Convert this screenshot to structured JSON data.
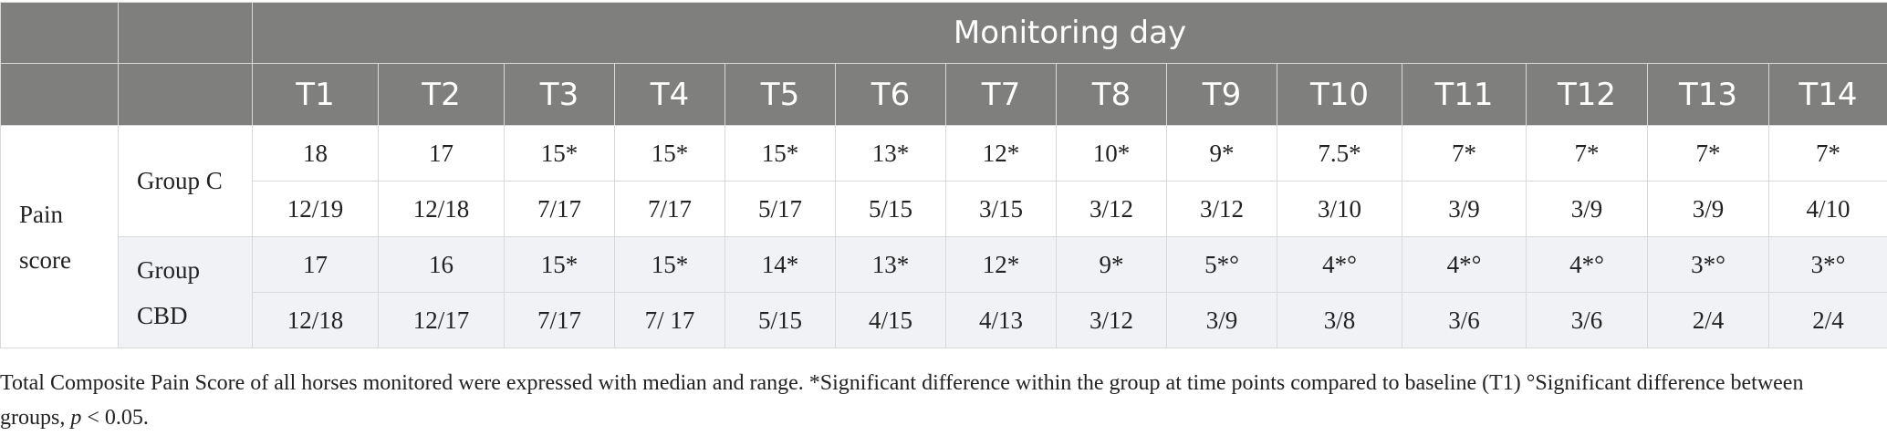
{
  "header": {
    "span_label": "Monitoring day",
    "days": [
      "T1",
      "T2",
      "T3",
      "T4",
      "T5",
      "T6",
      "T7",
      "T8",
      "T9",
      "T10",
      "T11",
      "T12",
      "T13",
      "T14"
    ]
  },
  "row_label_line1": "Pain",
  "row_label_line2": "score",
  "groups": [
    {
      "label": "Group C",
      "median": [
        "18",
        "17",
        "15*",
        "15*",
        "15*",
        "13*",
        "12*",
        "10*",
        "9*",
        "7.5*",
        "7*",
        "7*",
        "7*",
        "7*"
      ],
      "range": [
        "12/19",
        "12/18",
        "7/17",
        "7/17",
        "5/17",
        "5/15",
        "3/15",
        "3/12",
        "3/12",
        "3/10",
        "3/9",
        "3/9",
        "3/9",
        "4/10"
      ]
    },
    {
      "label_line1": "Group",
      "label_line2": "CBD",
      "median": [
        "17",
        "16",
        "15*",
        "15*",
        "14*",
        "13*",
        "12*",
        "9*",
        "5*°",
        "4*°",
        "4*°",
        "4*°",
        "3*°",
        "3*°"
      ],
      "range": [
        "12/18",
        "12/17",
        "7/17",
        "7/ 17",
        "5/15",
        "4/15",
        "4/13",
        "3/12",
        "3/9",
        "3/8",
        "3/6",
        "3/6",
        "2/4",
        "2/4"
      ]
    }
  ],
  "caption": {
    "main": "Total Composite Pain Score of all horses monitored were expressed with median and range. *Significant difference within the group at time points compared to baseline (T1) °Significant difference between groups, ",
    "p": "p",
    "tail": " < 0.05."
  }
}
